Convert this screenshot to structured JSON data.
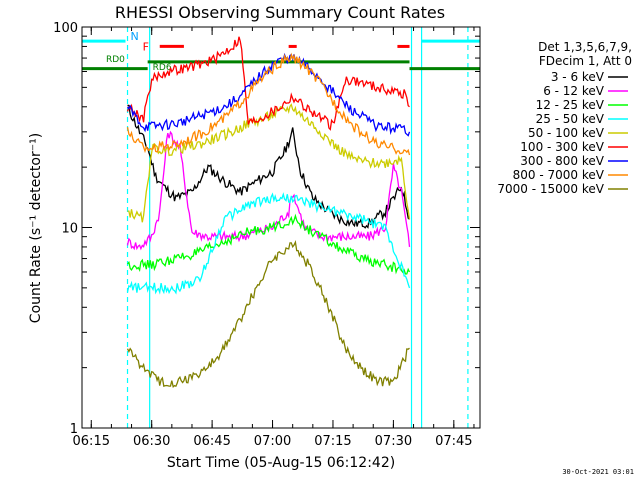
{
  "chart_data": {
    "type": "line",
    "title": "RHESSI Observing Summary Count Rates",
    "xlabel": "Start Time (05-Aug-15 06:12:42)",
    "ylabel": "Count Rate (s⁻¹ detector⁻¹)",
    "y_scale": "log",
    "ylim": [
      1,
      100
    ],
    "xlim": [
      "06:12:42",
      "07:51:30"
    ],
    "x_ticks": [
      "06:15",
      "06:30",
      "06:45",
      "07:00",
      "07:15",
      "07:30",
      "07:45"
    ],
    "y_ticks": [
      "1",
      "10",
      "100"
    ],
    "legend_header": [
      "Det 1,3,5,6,7,9,",
      "FDecim 1, Att 0"
    ],
    "legend_placement": "right",
    "series": [
      {
        "name": "3 - 6 keV",
        "color": "#000000",
        "x": [
          "06:24",
          "06:27",
          "06:29",
          "06:31",
          "06:33",
          "06:36",
          "06:40",
          "06:44",
          "06:48",
          "06:52",
          "06:56",
          "07:00",
          "07:03",
          "07:05",
          "07:07",
          "07:10",
          "07:14",
          "07:17",
          "07:20",
          "07:24",
          "07:28",
          "07:32",
          "07:34"
        ],
        "y": [
          40,
          30,
          25,
          18,
          16,
          14,
          15,
          20,
          17,
          15,
          17,
          19,
          24,
          30,
          19,
          14,
          12,
          11,
          10.5,
          10.5,
          12,
          16,
          11
        ]
      },
      {
        "name": "6 - 12 keV",
        "color": "#ff00ff",
        "x": [
          "06:24",
          "06:27",
          "06:30",
          "06:32",
          "06:34",
          "06:37",
          "06:40",
          "06:44",
          "06:48",
          "06:52",
          "06:56",
          "07:00",
          "07:04",
          "07:05",
          "07:08",
          "07:12",
          "07:16",
          "07:20",
          "07:24",
          "07:28",
          "07:30",
          "07:32",
          "07:34"
        ],
        "y": [
          8.5,
          8,
          9,
          12,
          30,
          25,
          9.5,
          9,
          9,
          9,
          9.5,
          10,
          12,
          15,
          10,
          9,
          9,
          9,
          9,
          10,
          20,
          15,
          8
        ]
      },
      {
        "name": "12 - 25 keV",
        "color": "#00ff00",
        "x": [
          "06:24",
          "06:30",
          "06:36",
          "06:42",
          "06:48",
          "06:54",
          "07:00",
          "07:05",
          "07:10",
          "07:16",
          "07:22",
          "07:28",
          "07:34"
        ],
        "y": [
          6.5,
          6.5,
          7,
          7.5,
          8.5,
          9.5,
          10,
          11,
          9.5,
          8,
          7,
          6.5,
          6
        ]
      },
      {
        "name": "25 - 50 keV",
        "color": "#00ffff",
        "x": [
          "06:24",
          "06:30",
          "06:36",
          "06:42",
          "06:48",
          "06:54",
          "07:00",
          "07:05",
          "07:10",
          "07:16",
          "07:22",
          "07:28",
          "07:34"
        ],
        "y": [
          5,
          5,
          5,
          5.5,
          11,
          13,
          14,
          14,
          13,
          12,
          11,
          10,
          5
        ]
      },
      {
        "name": "50 - 100 keV",
        "color": "#cccc00",
        "x": [
          "06:24",
          "06:28",
          "06:30",
          "06:34",
          "06:38",
          "06:42",
          "06:46",
          "06:50",
          "06:54",
          "06:58",
          "07:02",
          "07:05",
          "07:08",
          "07:12",
          "07:16",
          "07:20",
          "07:24",
          "07:28",
          "07:32",
          "07:34"
        ],
        "y": [
          12,
          11,
          25,
          24,
          25,
          26,
          28,
          30,
          33,
          35,
          38,
          40,
          35,
          30,
          25,
          22,
          21,
          21,
          22,
          11
        ]
      },
      {
        "name": "100 - 300 keV",
        "color": "#ff0000",
        "x": [
          "06:24",
          "06:28",
          "06:30",
          "06:34",
          "06:38",
          "06:42",
          "06:46",
          "06:50",
          "06:52",
          "06:54",
          "06:58",
          "07:02",
          "07:05",
          "07:08",
          "07:12",
          "07:15",
          "07:18",
          "07:22",
          "07:26",
          "07:30",
          "07:33",
          "07:34"
        ],
        "y": [
          40,
          35,
          55,
          60,
          62,
          65,
          70,
          80,
          88,
          33,
          36,
          40,
          45,
          40,
          35,
          32,
          55,
          53,
          50,
          48,
          46,
          40
        ]
      },
      {
        "name": "300 - 800 keV",
        "color": "#0000ff",
        "x": [
          "06:24",
          "06:28",
          "06:30",
          "06:36",
          "06:42",
          "06:48",
          "06:52",
          "06:56",
          "07:00",
          "07:03",
          "07:05",
          "07:08",
          "07:12",
          "07:16",
          "07:20",
          "07:26",
          "07:33",
          "07:34"
        ],
        "y": [
          40,
          32,
          32,
          33,
          36,
          40,
          45,
          55,
          65,
          70,
          70,
          65,
          55,
          45,
          38,
          32,
          31,
          30
        ]
      },
      {
        "name": "800 - 7000 keV",
        "color": "#ff8800",
        "x": [
          "06:24",
          "06:28",
          "06:30",
          "06:36",
          "06:42",
          "06:48",
          "06:52",
          "06:56",
          "07:00",
          "07:03",
          "07:05",
          "07:08",
          "07:12",
          "07:16",
          "07:20",
          "07:26",
          "07:33",
          "07:34"
        ],
        "y": [
          30,
          25,
          25,
          26,
          29,
          35,
          42,
          52,
          62,
          68,
          70,
          64,
          52,
          40,
          32,
          26,
          24,
          23
        ]
      },
      {
        "name": "7000 - 15000 keV",
        "color": "#808000",
        "x": [
          "06:24",
          "06:28",
          "06:32",
          "06:36",
          "06:40",
          "06:44",
          "06:48",
          "06:52",
          "06:56",
          "07:00",
          "07:04",
          "07:06",
          "07:10",
          "07:14",
          "07:18",
          "07:22",
          "07:26",
          "07:30",
          "07:34"
        ],
        "y": [
          2.5,
          2,
          1.7,
          1.7,
          1.8,
          2,
          2.5,
          3.5,
          5,
          7,
          8,
          8,
          6,
          4,
          2.5,
          2,
          1.7,
          1.7,
          2.5
        ]
      }
    ],
    "annotations": [
      {
        "text": "N",
        "color": "#00a0ff"
      },
      {
        "text": "F",
        "color": "#ff0000"
      },
      {
        "text": "RD0",
        "color": "#008000"
      },
      {
        "text": "RD6",
        "color": "#008000"
      }
    ],
    "bars": [
      {
        "label": "N",
        "color": "#00ffff",
        "level": 85,
        "intervals": [
          [
            "06:12:42",
            "06:23:30"
          ],
          [
            "07:37:00",
            "07:51:30"
          ]
        ]
      },
      {
        "label": "F",
        "color": "#ff0000",
        "level": 80,
        "intervals": [
          [
            "06:32:00",
            "06:38:00"
          ],
          [
            "07:04:00",
            "07:06:00"
          ],
          [
            "07:31:00",
            "07:34:00"
          ]
        ]
      },
      {
        "label": "RD0",
        "color": "#008000",
        "level": 62,
        "intervals": [
          [
            "06:12:42",
            "06:29:00"
          ],
          [
            "07:34:00",
            "07:51:30"
          ]
        ]
      },
      {
        "label": "RD6",
        "color": "#008000",
        "level": 67,
        "intervals": [
          [
            "06:29:00",
            "07:34:00"
          ]
        ]
      }
    ],
    "vlines": [
      {
        "x": "06:24:00",
        "color": "#00ffff",
        "dashed": true
      },
      {
        "x": "07:48:30",
        "color": "#00ffff",
        "dashed": true
      },
      {
        "x": "06:29:30",
        "color": "#00ffff",
        "dashed": false
      },
      {
        "x": "07:34:30",
        "color": "#00ffff",
        "dashed": false
      },
      {
        "x": "07:37:00",
        "color": "#00ffff",
        "dashed": false
      }
    ]
  },
  "timestamp": "30-Oct-2021 03:01"
}
